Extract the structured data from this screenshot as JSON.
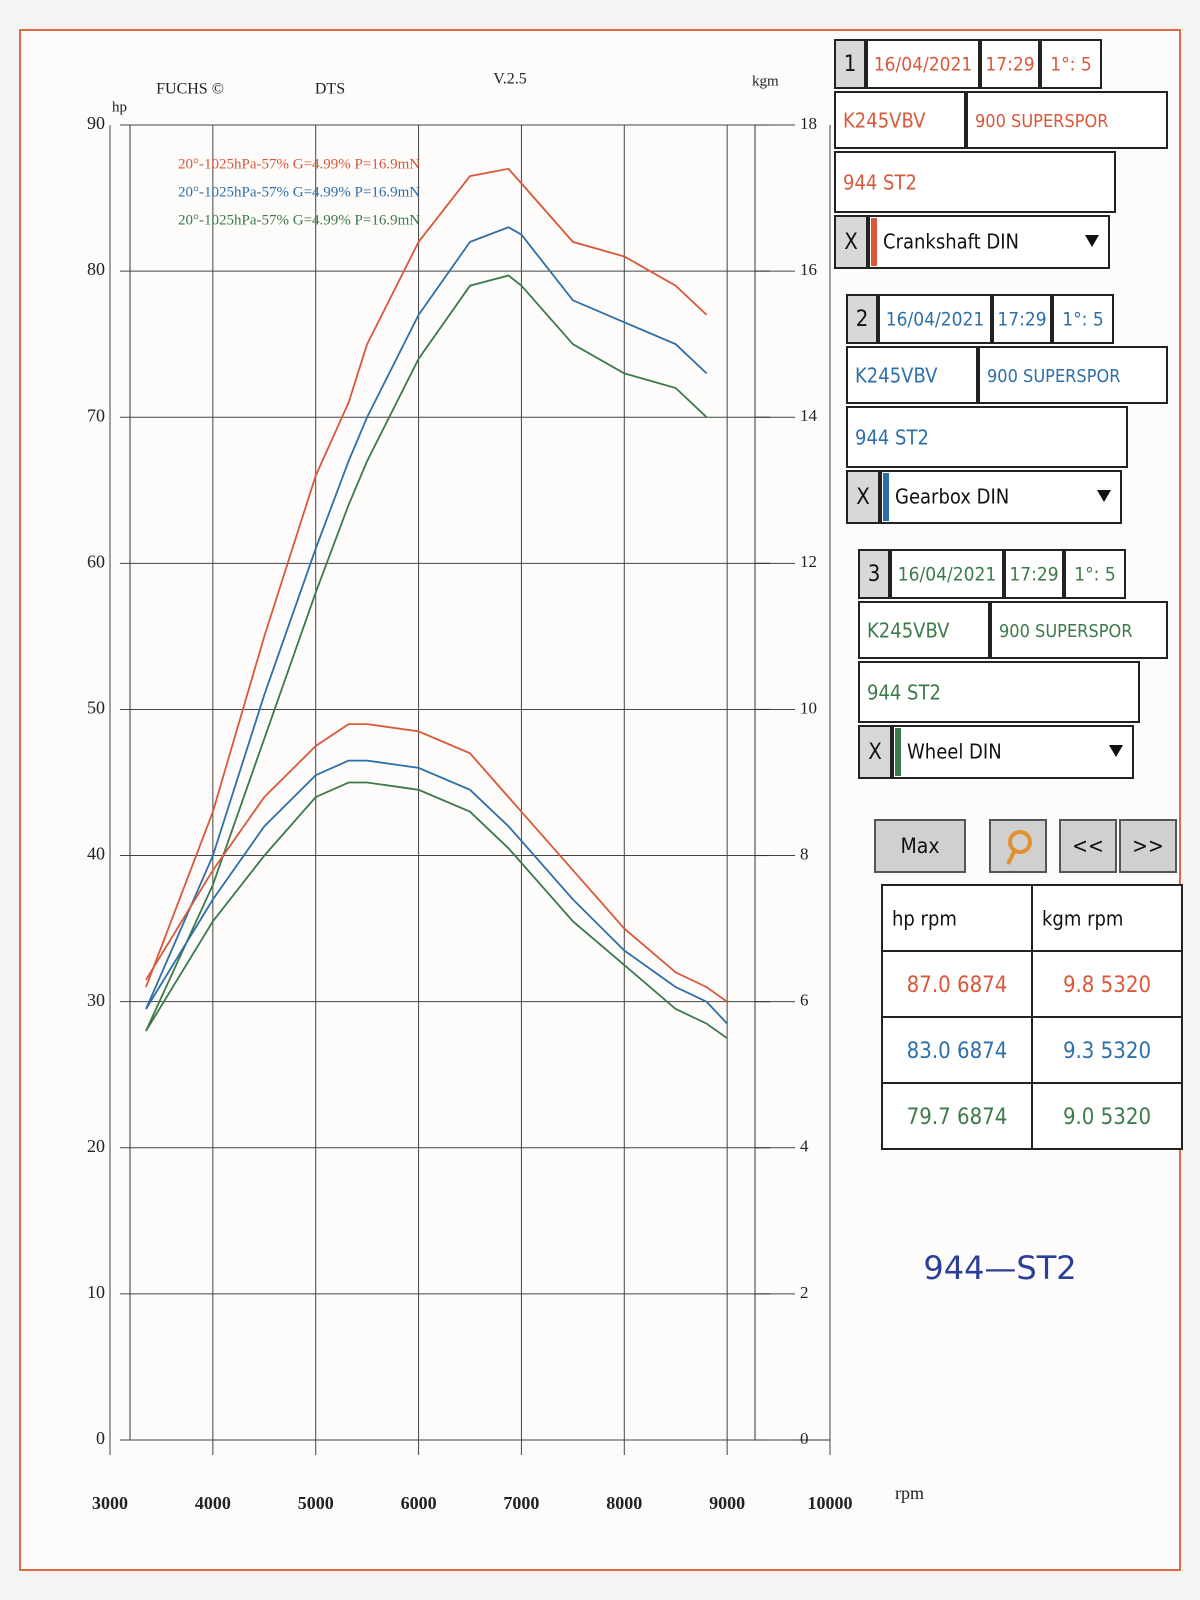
{
  "chart_data": {
    "type": "line",
    "header": [
      "FUCHS ©",
      "DTS",
      "V.2.5"
    ],
    "y_label": "hp",
    "y2_label": "kgm",
    "x_label": "rpm",
    "x": [
      3350,
      4000,
      4500,
      5000,
      5320,
      5500,
      6000,
      6500,
      6874,
      7000,
      7500,
      8000,
      8500,
      8800,
      9000
    ],
    "xlim": [
      3000,
      10000
    ],
    "xticks": [
      3000,
      4000,
      5000,
      6000,
      7000,
      8000,
      9000,
      10000
    ],
    "ylim": [
      0,
      90
    ],
    "yticks": [
      0,
      10,
      20,
      30,
      40,
      50,
      60,
      70,
      80,
      90
    ],
    "y2lim": [
      0,
      18
    ],
    "y2ticks": [
      0,
      2,
      4,
      6,
      8,
      10,
      12,
      14,
      16,
      18
    ],
    "grid": true,
    "series": [
      {
        "name": "20°-1025hPa-57% G=4.99% P=16.9mN",
        "color": "#d9583a",
        "values": [
          31,
          43,
          55,
          66,
          71,
          75,
          82,
          86.5,
          87,
          86,
          82,
          81,
          79,
          77,
          null
        ]
      },
      {
        "name": "20°-1025hPa-57% G=4.99% P=16.9mN",
        "color": "#2e6fa8",
        "values": [
          29.5,
          40,
          51,
          61,
          67,
          70,
          77,
          82,
          83,
          82.5,
          78,
          76.5,
          75,
          73,
          null
        ]
      },
      {
        "name": "20°-1025hPa-57% G=4.99% P=16.9mN",
        "color": "#3c7a4a",
        "values": [
          28,
          38,
          48,
          58,
          64,
          67,
          74,
          79,
          79.7,
          79,
          75,
          73,
          72,
          70,
          null
        ]
      },
      {
        "color": "#d9583a",
        "axis": "y2",
        "values": [
          6.3,
          7.8,
          8.8,
          9.5,
          9.8,
          9.8,
          9.7,
          9.4,
          8.8,
          8.6,
          7.8,
          7.0,
          6.4,
          6.2,
          6.0
        ]
      },
      {
        "color": "#2e6fa8",
        "axis": "y2",
        "values": [
          5.9,
          7.4,
          8.4,
          9.1,
          9.3,
          9.3,
          9.2,
          8.9,
          8.4,
          8.2,
          7.4,
          6.7,
          6.2,
          6.0,
          5.7
        ]
      },
      {
        "color": "#3c7a4a",
        "axis": "y2",
        "values": [
          5.6,
          7.1,
          8.0,
          8.8,
          9.0,
          9.0,
          8.9,
          8.6,
          8.1,
          7.9,
          7.1,
          6.5,
          5.9,
          5.7,
          5.5
        ]
      }
    ]
  },
  "panel": {
    "blocks": [
      {
        "number": "1",
        "date": "16/04/2021",
        "time": "17:29",
        "ratio": "1°: 5",
        "plate": "K245VBV",
        "model": "900 SUPERSPOR",
        "engine": "944 ST2",
        "close": "X",
        "mode": "Crankshaft DIN",
        "color": "#d9583a"
      },
      {
        "number": "2",
        "date": "16/04/2021",
        "time": "17:29",
        "ratio": "1°: 5",
        "plate": "K245VBV",
        "model": "900 SUPERSPOR",
        "engine": "944 ST2",
        "close": "X",
        "mode": "Gearbox DIN",
        "color": "#2e6fa8"
      },
      {
        "number": "3",
        "date": "16/04/2021",
        "time": "17:29",
        "ratio": "1°: 5",
        "plate": "K245VBV",
        "model": "900 SUPERSPOR",
        "engine": "944 ST2",
        "close": "X",
        "mode": "Wheel DIN",
        "color": "#3c7a4a"
      }
    ],
    "buttons": [
      "Max",
      "<<",
      ">>"
    ],
    "table": {
      "header": [
        "hp   rpm",
        "kgm   rpm"
      ],
      "rows": [
        [
          "87.0 6874",
          "9.8 5320"
        ],
        [
          "83.0 6874",
          "9.3 5320"
        ],
        [
          "79.7 6874",
          "9.0 5320"
        ]
      ]
    },
    "note": "944—ST2"
  }
}
